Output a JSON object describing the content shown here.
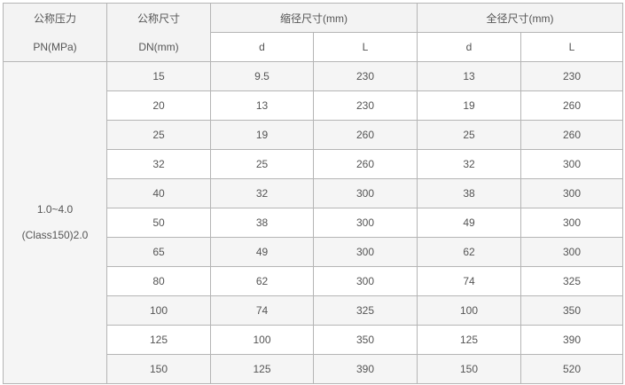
{
  "header": {
    "pressure_label": "公称压力",
    "pressure_unit": "PN(MPa)",
    "size_label": "公称尺寸",
    "size_unit": "DN(mm)",
    "reduced_bore": "缩径尺寸(mm)",
    "full_bore": "全径尺寸(mm)",
    "d": "d",
    "L": "L"
  },
  "pressure": {
    "line1": "1.0~4.0",
    "line2": "(Class150)2.0"
  },
  "rows": [
    [
      "15",
      "9.5",
      "230",
      "13",
      "230"
    ],
    [
      "20",
      "13",
      "230",
      "19",
      "260"
    ],
    [
      "25",
      "19",
      "260",
      "25",
      "260"
    ],
    [
      "32",
      "25",
      "260",
      "32",
      "300"
    ],
    [
      "40",
      "32",
      "300",
      "38",
      "300"
    ],
    [
      "50",
      "38",
      "300",
      "49",
      "300"
    ],
    [
      "65",
      "49",
      "300",
      "62",
      "300"
    ],
    [
      "80",
      "62",
      "300",
      "74",
      "325"
    ],
    [
      "100",
      "74",
      "325",
      "100",
      "350"
    ],
    [
      "125",
      "100",
      "350",
      "125",
      "390"
    ],
    [
      "150",
      "125",
      "390",
      "150",
      "520"
    ]
  ]
}
